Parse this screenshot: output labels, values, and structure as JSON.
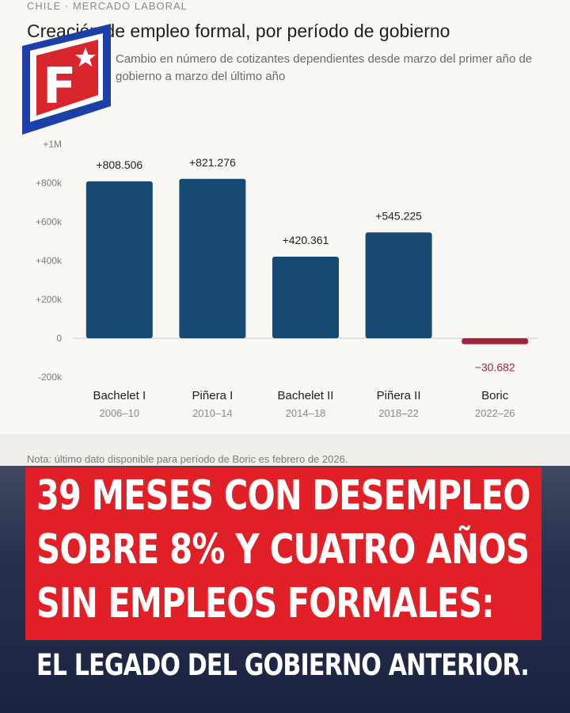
{
  "header": {
    "kicker": "CHILE · MERCADO LABORAL",
    "title": "Creación de empleo formal, por período de gobierno",
    "subtitle": "Cambio en número de cotizantes dependientes desde marzo del primer año de gobierno a marzo del último año"
  },
  "note": "Nota: último dato disponible para período de Boric es febrero de 2026.",
  "headline": {
    "line1": "39 MESES CON DESEMPLEO",
    "line2": "SOBRE 8% Y CUATRO AÑOS",
    "line3": "SIN EMPLEOS FORMALES:",
    "subline": "EL LEGADO DEL GOBIERNO ANTERIOR."
  },
  "logo": {
    "letter": "F",
    "icon": "star-icon"
  },
  "colors": {
    "bar_positive": "#174a72",
    "bar_negative": "#a3223a",
    "headline_bg": "#e01f26",
    "logo_blue": "#1c3fa8",
    "logo_red": "#d9262c"
  },
  "chart_data": {
    "type": "bar",
    "categories": [
      "Bachelet I",
      "Piñera I",
      "Bachelet II",
      "Piñera II",
      "Boric"
    ],
    "periods": [
      "2006–10",
      "2010–14",
      "2014–18",
      "2018–22",
      "2022–26"
    ],
    "values": [
      808506,
      821276,
      420361,
      545225,
      -30682
    ],
    "value_labels": [
      "+808.506",
      "+821.276",
      "+420.361",
      "+545.225",
      "−30.682"
    ],
    "yticks": [
      1000000,
      800000,
      600000,
      400000,
      200000,
      0,
      -200000
    ],
    "ytick_labels": [
      "+1M",
      "+800k",
      "+600k",
      "+400k",
      "+200k",
      "0",
      "-200k"
    ],
    "ylim": [
      -200000,
      1000000
    ],
    "title": "Creación de empleo formal, por período de gobierno",
    "xlabel": "",
    "ylabel": ""
  }
}
